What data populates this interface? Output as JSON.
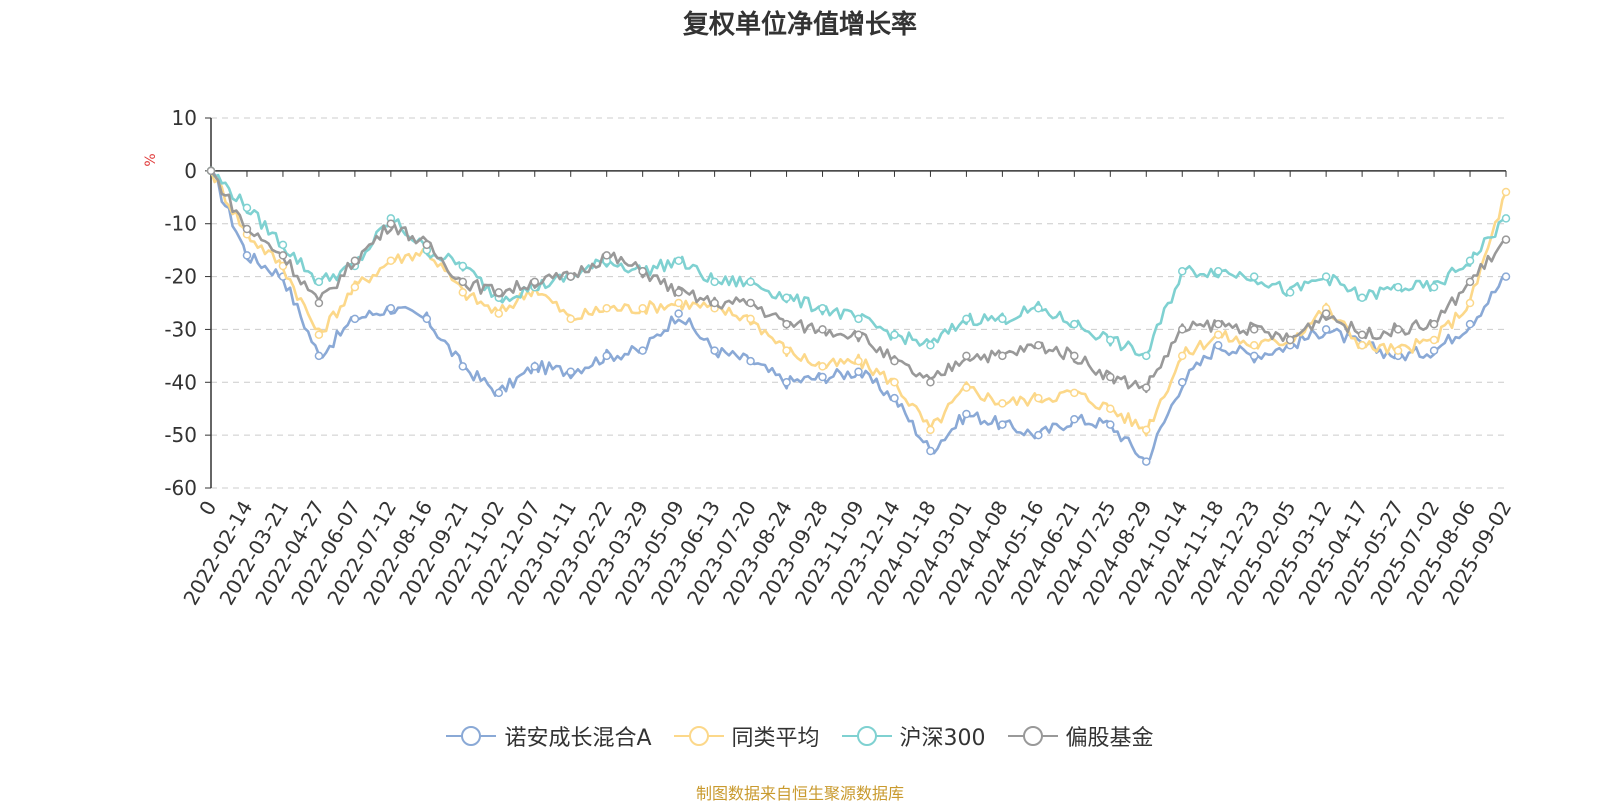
{
  "chart_data": {
    "type": "line",
    "title": "复权单位净值增长率",
    "ylabel": "%",
    "ylim": [
      -60,
      10
    ],
    "yticks": [
      10,
      0,
      -10,
      -20,
      -30,
      -40,
      -50,
      -60
    ],
    "grid": true,
    "legend_position": "bottom",
    "categories": [
      "0",
      "2022-02-14",
      "2022-03-21",
      "2022-04-27",
      "2022-06-07",
      "2022-07-12",
      "2022-08-16",
      "2022-09-21",
      "2022-11-02",
      "2022-12-07",
      "2023-01-11",
      "2023-02-22",
      "2023-03-29",
      "2023-05-09",
      "2023-06-13",
      "2023-07-20",
      "2023-08-24",
      "2023-09-28",
      "2023-11-09",
      "2023-12-14",
      "2024-01-18",
      "2024-03-01",
      "2024-04-08",
      "2024-05-16",
      "2024-06-21",
      "2024-07-25",
      "2024-08-29",
      "2024-10-14",
      "2024-11-18",
      "2024-12-23",
      "2025-02-05",
      "2025-03-12",
      "2025-04-17",
      "2025-05-27",
      "2025-07-02",
      "2025-08-06",
      "2025-09-02"
    ],
    "series": [
      {
        "name": "诺安成长混合A",
        "color": "#8aa9d6",
        "values": [
          0,
          -16,
          -20,
          -35,
          -28,
          -26,
          -28,
          -37,
          -42,
          -37,
          -38,
          -35,
          -34,
          -27,
          -34,
          -36,
          -40,
          -39,
          -38,
          -43,
          -53,
          -46,
          -48,
          -50,
          -47,
          -48,
          -55,
          -40,
          -33,
          -35,
          -33,
          -30,
          -33,
          -35,
          -34,
          -29,
          -20
        ]
      },
      {
        "name": "同类平均",
        "color": "#fcd88a",
        "values": [
          0,
          -12,
          -18,
          -31,
          -22,
          -17,
          -15,
          -23,
          -27,
          -22,
          -28,
          -26,
          -26,
          -25,
          -26,
          -28,
          -34,
          -37,
          -36,
          -40,
          -49,
          -41,
          -44,
          -43,
          -42,
          -45,
          -49,
          -35,
          -31,
          -33,
          -32,
          -26,
          -33,
          -34,
          -32,
          -25,
          -4
        ]
      },
      {
        "name": "沪深300",
        "color": "#7fd1d1",
        "values": [
          0,
          -7,
          -14,
          -21,
          -18,
          -9,
          -15,
          -18,
          -24,
          -22,
          -20,
          -17,
          -19,
          -17,
          -21,
          -21,
          -24,
          -26,
          -28,
          -31,
          -33,
          -28,
          -28,
          -26,
          -29,
          -32,
          -35,
          -19,
          -19,
          -20,
          -23,
          -20,
          -24,
          -22,
          -22,
          -17,
          -9
        ]
      },
      {
        "name": "偏股基金",
        "color": "#999999",
        "values": [
          0,
          -11,
          -16,
          -25,
          -17,
          -10,
          -14,
          -21,
          -23,
          -21,
          -20,
          -16,
          -19,
          -23,
          -25,
          -25,
          -29,
          -30,
          -31,
          -36,
          -40,
          -35,
          -35,
          -33,
          -35,
          -39,
          -41,
          -30,
          -29,
          -30,
          -32,
          -27,
          -31,
          -30,
          -29,
          -21,
          -13
        ]
      }
    ]
  },
  "source_text": "制图数据来自恒生聚源数据库"
}
